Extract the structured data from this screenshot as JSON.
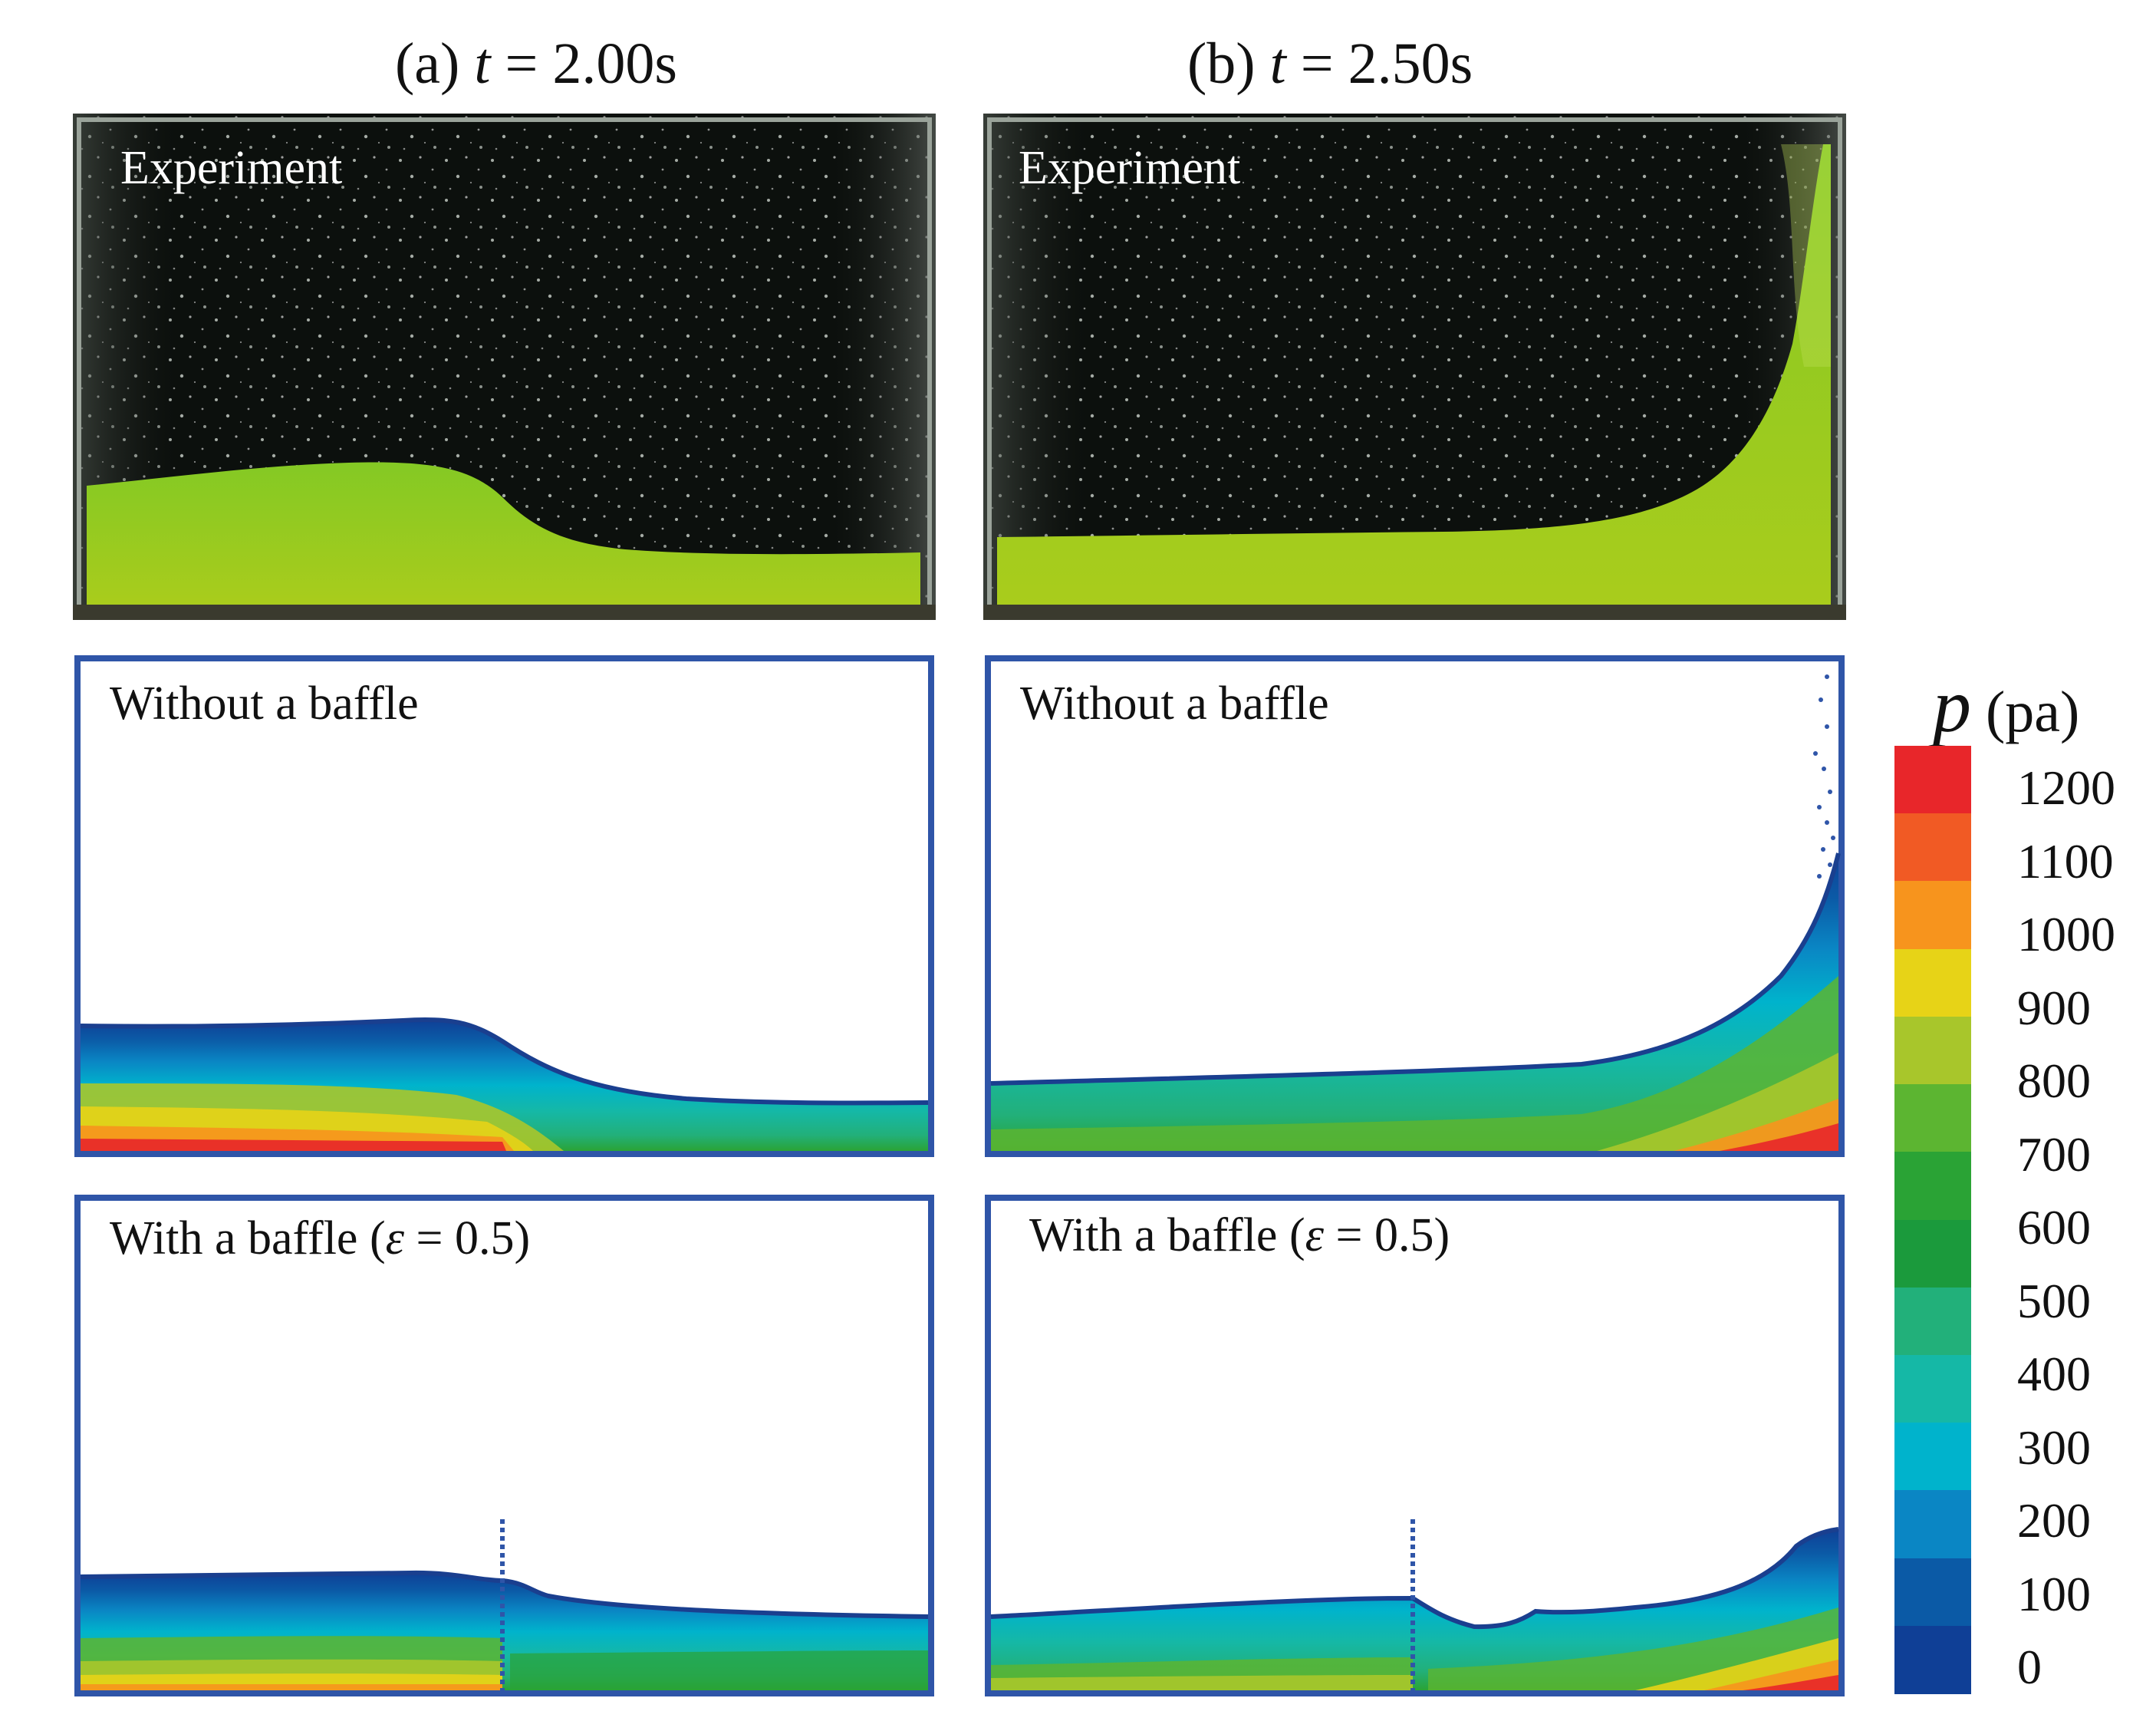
{
  "columns": [
    {
      "label": "(a) ",
      "var": "t",
      "value": " = 2.00s"
    },
    {
      "label": "(b) ",
      "var": "t",
      "value": " = 2.50s"
    }
  ],
  "rows": {
    "experiment": "Experiment",
    "no_baffle": "Without a baffle",
    "baffle_prefix": "With a baffle (",
    "baffle_eps": "ε",
    "baffle_suffix": " = 0.5)"
  },
  "legend": {
    "variable": "p",
    "unit": " (pa)",
    "ticks": [
      "1200",
      "1100",
      "1000",
      "900",
      "800",
      "700",
      "600",
      "500",
      "400",
      "300",
      "200",
      "100",
      "0"
    ],
    "colors": [
      "#e8262a",
      "#f15a24",
      "#f7941d",
      "#e7d317",
      "#a8c62b",
      "#5cb531",
      "#2aa335",
      "#1b9a3c",
      "#22b07a",
      "#15b8a6",
      "#00b3cc",
      "#0a86c4",
      "#0b5aa6",
      "#0f3f96"
    ]
  },
  "colors": {
    "tank_border": "#2f55a8",
    "experiment_bg": "#0e1210",
    "liquid": "#7cc21e"
  }
}
